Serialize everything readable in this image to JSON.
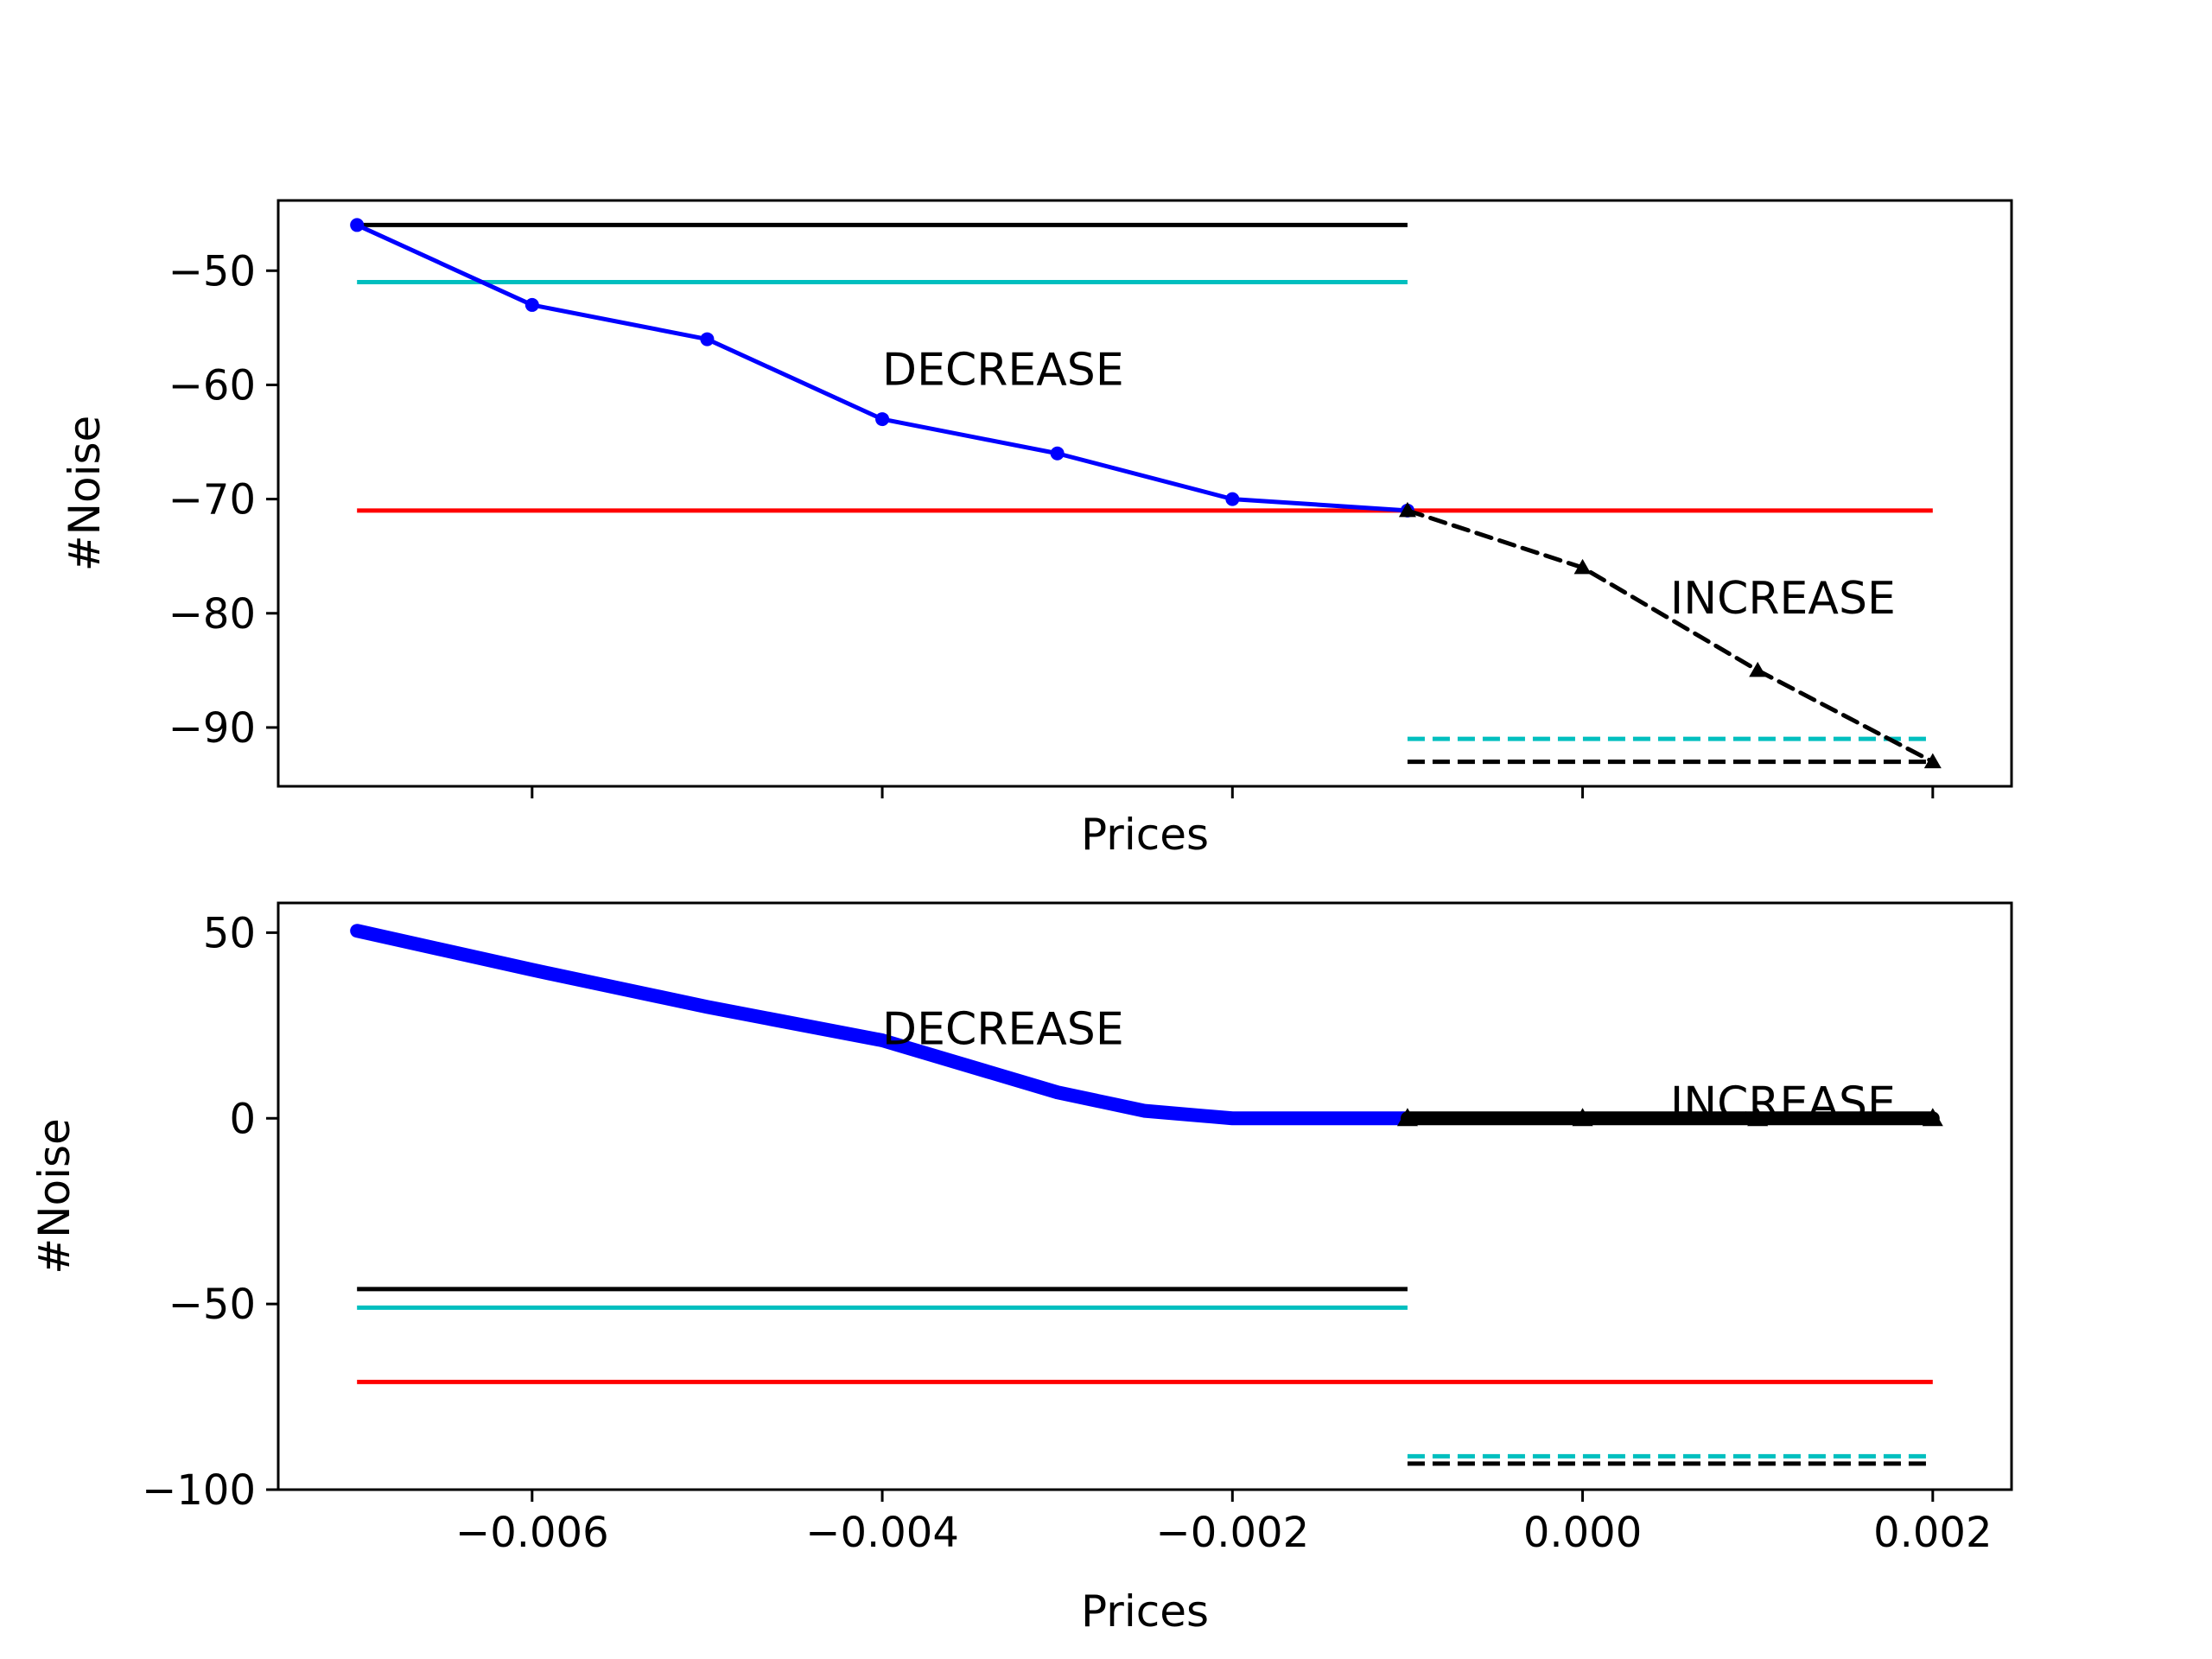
{
  "chart_data": [
    {
      "type": "line",
      "xlabel": "Prices",
      "ylabel": "#Noise",
      "xlim": [
        -0.00745,
        0.00245
      ],
      "ylim": [
        -95.15,
        -43.85
      ],
      "xticks": [
        -0.006,
        -0.004,
        -0.002,
        0.0,
        0.002
      ],
      "show_xtick_labels": false,
      "yticks": [
        -50,
        -60,
        -70,
        -80,
        -90
      ],
      "ytick_labels": [
        "−50",
        "−60",
        "−70",
        "−80",
        "−90"
      ],
      "series": [
        {
          "color": "#0000ff",
          "style": "solid",
          "marker": "dot",
          "x": [
            -0.007,
            -0.006,
            -0.005,
            -0.004,
            -0.003,
            -0.002,
            -0.001
          ],
          "y": [
            -46,
            -53,
            -56,
            -63,
            -66,
            -70,
            -71
          ]
        },
        {
          "color": "#000000",
          "style": "dashed",
          "marker": "triangle",
          "x": [
            -0.001,
            0.0,
            0.001,
            0.002
          ],
          "y": [
            -71,
            -76,
            -85,
            -93
          ]
        }
      ],
      "hlines": [
        {
          "y": -46,
          "x0": -0.007,
          "x1": -0.001,
          "color": "#000000",
          "style": "solid"
        },
        {
          "y": -51,
          "x0": -0.007,
          "x1": -0.001,
          "color": "#00bfbf",
          "style": "solid"
        },
        {
          "y": -71,
          "x0": -0.007,
          "x1": 0.002,
          "color": "#ff0000",
          "style": "solid"
        },
        {
          "y": -91,
          "x0": -0.001,
          "x1": 0.002,
          "color": "#00bfbf",
          "style": "dashed"
        },
        {
          "y": -93,
          "x0": -0.001,
          "x1": 0.002,
          "color": "#000000",
          "style": "dashed"
        }
      ],
      "annotations": [
        {
          "text": "DECREASE",
          "x": -0.004,
          "y": -60
        },
        {
          "text": "INCREASE",
          "x": 0.0005,
          "y": -80
        }
      ]
    },
    {
      "type": "line",
      "xlabel": "Prices",
      "ylabel": "#Noise",
      "xlim": [
        -0.00745,
        0.00245
      ],
      "ylim": [
        -100,
        58
      ],
      "xticks": [
        -0.006,
        -0.004,
        -0.002,
        0.0,
        0.002
      ],
      "xtick_labels": [
        "−0.006",
        "−0.004",
        "−0.002",
        "0.000",
        "0.002"
      ],
      "show_xtick_labels": true,
      "yticks": [
        50,
        0,
        -50,
        -100
      ],
      "ytick_labels": [
        "50",
        "0",
        "−50",
        "−100"
      ],
      "series": [
        {
          "color": "#0000ff",
          "style": "solid",
          "width": "thick",
          "x": [
            -0.007,
            -0.006,
            -0.005,
            -0.004,
            -0.003,
            -0.0025,
            -0.002,
            -0.001
          ],
          "y": [
            50.5,
            40,
            30,
            21,
            7,
            2,
            0,
            0
          ]
        },
        {
          "color": "#000000",
          "style": "solid",
          "width": "thick",
          "marker": "triangle",
          "x": [
            -0.001,
            0.0,
            0.001,
            0.002
          ],
          "y": [
            0,
            0,
            0,
            0
          ]
        }
      ],
      "hlines": [
        {
          "y": -46,
          "x0": -0.007,
          "x1": -0.001,
          "color": "#000000",
          "style": "solid"
        },
        {
          "y": -51,
          "x0": -0.007,
          "x1": -0.001,
          "color": "#00bfbf",
          "style": "solid"
        },
        {
          "y": -71,
          "x0": -0.007,
          "x1": 0.002,
          "color": "#ff0000",
          "style": "solid"
        },
        {
          "y": -91,
          "x0": -0.001,
          "x1": 0.002,
          "color": "#00bfbf",
          "style": "dashed"
        },
        {
          "y": -93,
          "x0": -0.001,
          "x1": 0.002,
          "color": "#000000",
          "style": "dashed"
        }
      ],
      "annotations": [
        {
          "text": "DECREASE",
          "x": -0.004,
          "y": 20
        },
        {
          "text": "INCREASE",
          "x": 0.0005,
          "y": 0
        }
      ]
    }
  ]
}
